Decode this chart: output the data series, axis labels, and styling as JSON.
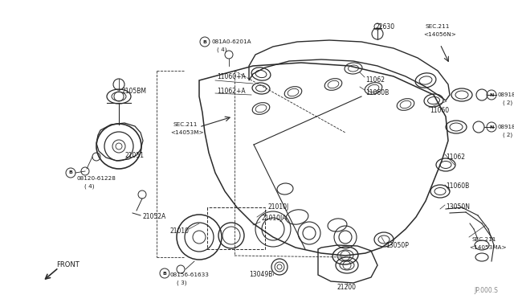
{
  "bg_color": "#ffffff",
  "line_color": "#2a2a2a",
  "text_color": "#1a1a1a",
  "watermark": "JP.000.S",
  "fig_w": 6.4,
  "fig_h": 3.72,
  "dpi": 100,
  "xlim": [
    0,
    640
  ],
  "ylim": [
    0,
    372
  ]
}
